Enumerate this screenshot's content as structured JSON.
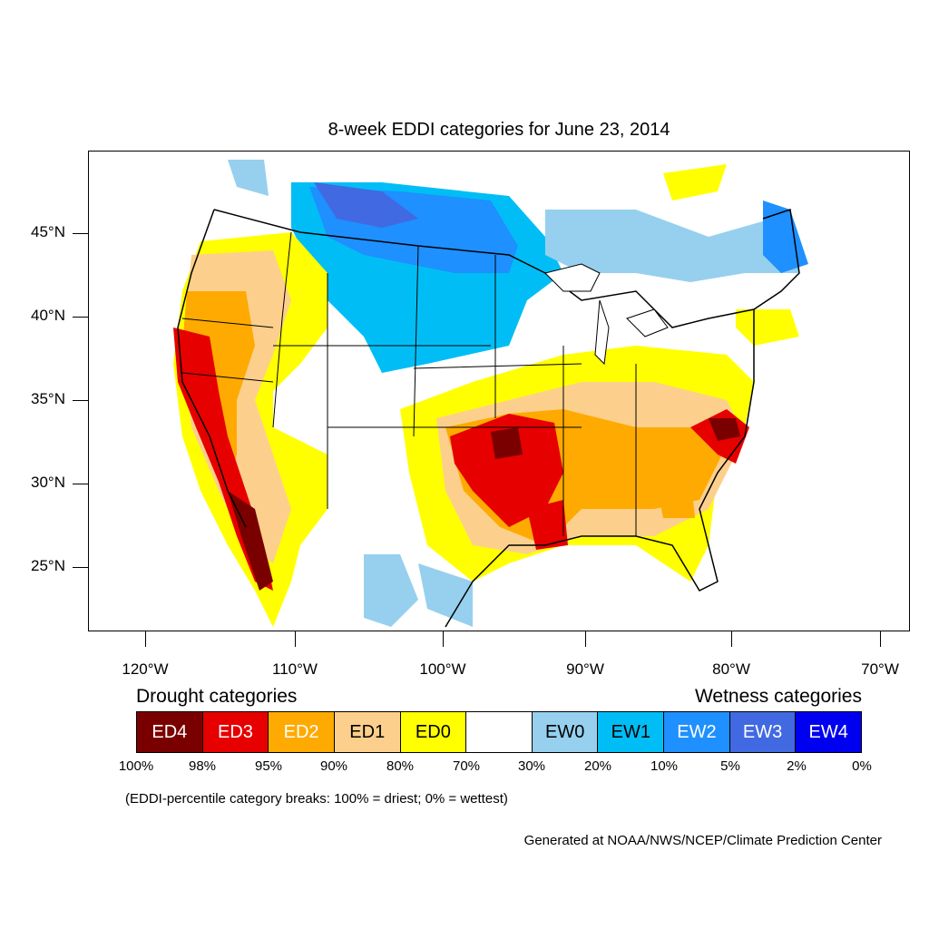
{
  "title": "8-week EDDI categories for June 23, 2014",
  "map": {
    "region": "Contiguous United States",
    "latitude_labels": [
      "45°N",
      "40°N",
      "35°N",
      "30°N",
      "25°N"
    ],
    "longitude_labels": [
      "120°W",
      "110°W",
      "100°W",
      "90°W",
      "80°W",
      "70°W"
    ]
  },
  "legend": {
    "drought_heading": "Drought categories",
    "wetness_heading": "Wetness categories",
    "categories": [
      {
        "label": "ED4",
        "color": "#7a0000",
        "text_color": "#ffffff"
      },
      {
        "label": "ED3",
        "color": "#e60000",
        "text_color": "#ffffff"
      },
      {
        "label": "ED2",
        "color": "#ffaa00",
        "text_color": "#ffffff"
      },
      {
        "label": "ED1",
        "color": "#fcd08c",
        "text_color": "#000000"
      },
      {
        "label": "ED0",
        "color": "#ffff00",
        "text_color": "#000000"
      },
      {
        "label": "",
        "color": "#ffffff",
        "text_color": "#000000"
      },
      {
        "label": "EW0",
        "color": "#96d0ee",
        "text_color": "#000000"
      },
      {
        "label": "EW1",
        "color": "#00bef5",
        "text_color": "#000000"
      },
      {
        "label": "EW2",
        "color": "#1e90ff",
        "text_color": "#ffffff"
      },
      {
        "label": "EW3",
        "color": "#4169e1",
        "text_color": "#ffffff"
      },
      {
        "label": "EW4",
        "color": "#0000f0",
        "text_color": "#ffffff"
      }
    ],
    "percentiles": [
      "100%",
      "98%",
      "95%",
      "90%",
      "80%",
      "70%",
      "30%",
      "20%",
      "10%",
      "5%",
      "2%",
      "0%"
    ]
  },
  "note": "(EDDI-percentile category breaks: 100% = driest; 0% = wettest)",
  "credit": "Generated at NOAA/NWS/NCEP/Climate Prediction Center"
}
